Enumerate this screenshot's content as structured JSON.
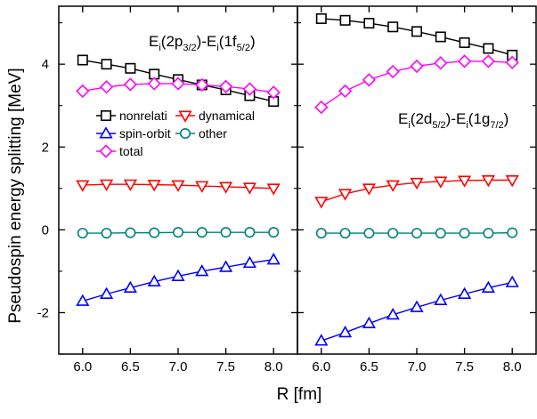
{
  "chart_data": [
    {
      "type": "line",
      "panel": "left",
      "annotation": {
        "base": "E",
        "sub1": "i",
        "mid1": "(2p",
        "sub2": "3/2",
        "mid2": ")-E",
        "sub3": "i",
        "mid3": "(1f",
        "sub4": "5/2",
        "end": ")"
      },
      "x": [
        6.0,
        6.25,
        6.5,
        6.75,
        7.0,
        7.25,
        7.5,
        7.75,
        8.0
      ],
      "xlim": [
        5.75,
        8.25
      ],
      "ylim": [
        -3.0,
        5.4
      ],
      "series": [
        {
          "name": "nonrelati",
          "color": "#000000",
          "marker": "square",
          "values": [
            4.1,
            4.0,
            3.9,
            3.76,
            3.63,
            3.5,
            3.38,
            3.24,
            3.1
          ]
        },
        {
          "name": "dynamical",
          "color": "#ff0000",
          "marker": "triangle-down",
          "values": [
            1.08,
            1.1,
            1.1,
            1.09,
            1.08,
            1.06,
            1.04,
            1.02,
            1.0
          ]
        },
        {
          "name": "spin-orbit",
          "color": "#0000ff",
          "marker": "triangle-up",
          "values": [
            -1.72,
            -1.55,
            -1.4,
            -1.25,
            -1.12,
            -1.0,
            -0.9,
            -0.8,
            -0.72
          ]
        },
        {
          "name": "other",
          "color": "#008080",
          "marker": "circle",
          "values": [
            -0.08,
            -0.08,
            -0.07,
            -0.07,
            -0.06,
            -0.06,
            -0.06,
            -0.06,
            -0.06
          ]
        },
        {
          "name": "total",
          "color": "#ff00ff",
          "marker": "diamond",
          "values": [
            3.35,
            3.45,
            3.51,
            3.53,
            3.53,
            3.5,
            3.46,
            3.4,
            3.32
          ]
        }
      ]
    },
    {
      "type": "line",
      "panel": "right",
      "annotation": {
        "base": "E",
        "sub1": "i",
        "mid1": "(2d",
        "sub2": "5/2",
        "mid2": ")-E",
        "sub3": "i",
        "mid3": "(1g",
        "sub4": "7/2",
        "end": ")"
      },
      "x": [
        6.0,
        6.25,
        6.5,
        6.75,
        7.0,
        7.25,
        7.5,
        7.75,
        8.0
      ],
      "xlim": [
        5.75,
        8.25
      ],
      "ylim": [
        -3.0,
        5.4
      ],
      "series": [
        {
          "name": "nonrelati",
          "color": "#000000",
          "marker": "square",
          "values": [
            5.1,
            5.06,
            4.99,
            4.9,
            4.79,
            4.66,
            4.52,
            4.38,
            4.22
          ]
        },
        {
          "name": "dynamical",
          "color": "#ff0000",
          "marker": "triangle-down",
          "values": [
            0.68,
            0.87,
            1.0,
            1.08,
            1.14,
            1.17,
            1.19,
            1.2,
            1.2
          ]
        },
        {
          "name": "spin-orbit",
          "color": "#0000ff",
          "marker": "triangle-up",
          "values": [
            -2.68,
            -2.48,
            -2.26,
            -2.05,
            -1.87,
            -1.7,
            -1.55,
            -1.4,
            -1.27
          ]
        },
        {
          "name": "other",
          "color": "#008080",
          "marker": "circle",
          "values": [
            -0.08,
            -0.08,
            -0.08,
            -0.08,
            -0.08,
            -0.08,
            -0.08,
            -0.08,
            -0.07
          ]
        },
        {
          "name": "total",
          "color": "#ff00ff",
          "marker": "diamond",
          "values": [
            2.96,
            3.35,
            3.62,
            3.82,
            3.95,
            4.03,
            4.07,
            4.07,
            4.04
          ]
        }
      ]
    }
  ],
  "axes": {
    "xlabel": "R [fm]",
    "ylabel": "Pseudospin energy splitting [MeV]",
    "xticks": [
      6.0,
      6.5,
      7.0,
      7.5,
      8.0
    ],
    "xtick_labels": [
      "6.0",
      "6.5",
      "7.0",
      "7.5",
      "8.0"
    ],
    "yticks": [
      -2,
      0,
      2,
      4
    ],
    "ytick_labels": [
      "-2",
      "0",
      "2",
      "4"
    ]
  },
  "legend": {
    "placement": "left panel, middle",
    "entries": [
      {
        "label": "nonrelati",
        "marker": "square",
        "color": "#000000"
      },
      {
        "label": "dynamical",
        "marker": "triangle-down",
        "color": "#ff0000"
      },
      {
        "label": "spin-orbit",
        "marker": "triangle-up",
        "color": "#0000ff"
      },
      {
        "label": "other",
        "marker": "circle",
        "color": "#008080"
      },
      {
        "label": "total",
        "marker": "diamond",
        "color": "#ff00ff"
      }
    ]
  }
}
